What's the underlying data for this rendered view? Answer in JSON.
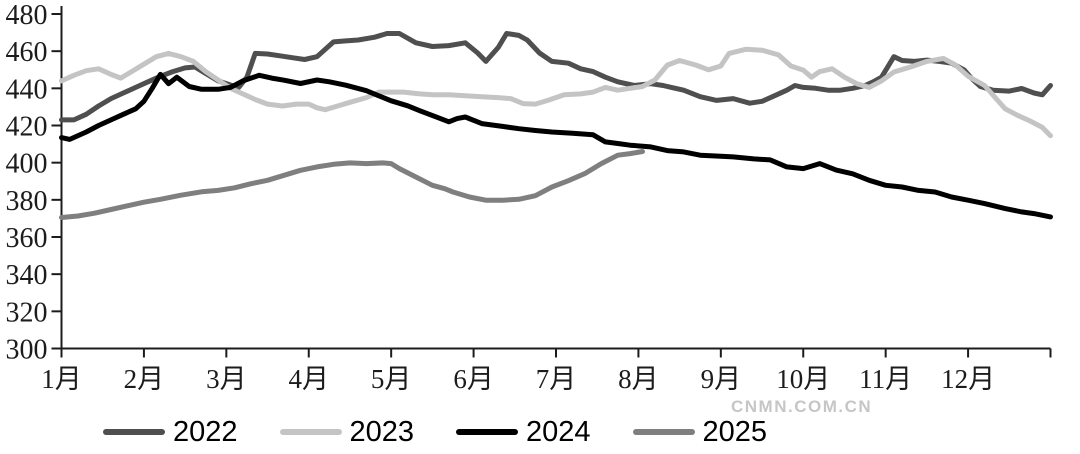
{
  "watermark": "CNMN.COM.CN",
  "chart_data": {
    "type": "line",
    "title": "",
    "xlabel": "",
    "ylabel": "",
    "x_axis": {
      "categories": [
        "1月",
        "2月",
        "3月",
        "4月",
        "5月",
        "6月",
        "7月",
        "8月",
        "9月",
        "10月",
        "11月",
        "12月"
      ],
      "range": [
        1,
        13
      ]
    },
    "y_axis": {
      "min": 300,
      "max": 480,
      "step": 20,
      "tick_labels": [
        "300",
        "320",
        "340",
        "360",
        "380",
        "400",
        "420",
        "440",
        "460",
        "480"
      ]
    },
    "grid": false,
    "legend_position": "bottom",
    "series": [
      {
        "name": "2022",
        "color": "#4f4f4f",
        "x": [
          1.0,
          1.15,
          1.3,
          1.45,
          1.6,
          1.75,
          1.9,
          2.05,
          2.2,
          2.35,
          2.5,
          2.62,
          2.75,
          2.9,
          3.05,
          3.15,
          3.25,
          3.35,
          3.5,
          3.65,
          3.8,
          3.95,
          4.1,
          4.3,
          4.45,
          4.6,
          4.8,
          4.95,
          5.1,
          5.3,
          5.5,
          5.7,
          5.9,
          6.05,
          6.15,
          6.3,
          6.4,
          6.55,
          6.65,
          6.8,
          6.95,
          7.15,
          7.3,
          7.45,
          7.6,
          7.75,
          7.95,
          8.15,
          8.3,
          8.4,
          8.55,
          8.75,
          8.95,
          9.15,
          9.35,
          9.5,
          9.65,
          9.8,
          9.9,
          10.0,
          10.15,
          10.3,
          10.45,
          10.6,
          10.75,
          10.85,
          10.95,
          11.1,
          11.2,
          11.35,
          11.5,
          11.65,
          11.8,
          11.95,
          12.05,
          12.15,
          12.3,
          12.5,
          12.65,
          12.8,
          12.9,
          13.0
        ],
        "values": [
          423,
          423,
          426,
          430.5,
          434.5,
          437.5,
          440.5,
          443.5,
          446.5,
          449,
          451,
          451.5,
          448,
          444,
          441.8,
          440.5,
          446,
          458.8,
          458.5,
          457.5,
          456.5,
          455.5,
          457,
          465,
          465.5,
          466,
          467.5,
          469.5,
          469.5,
          464.5,
          462.5,
          463,
          464.5,
          459,
          454.5,
          462,
          469.5,
          468.5,
          466,
          459,
          454.5,
          453.5,
          450.5,
          449,
          446,
          443.5,
          441.5,
          442.5,
          441.5,
          440.5,
          439,
          435.5,
          433.5,
          434.5,
          432,
          433,
          436,
          439,
          441.5,
          440.5,
          440,
          439,
          439,
          440,
          441.5,
          443.5,
          446,
          457,
          455,
          454.5,
          455.2,
          454.5,
          453.5,
          450,
          445,
          441,
          439,
          438.5,
          439.9,
          437.5,
          436.5,
          441.5
        ]
      },
      {
        "name": "2023",
        "color": "#c4c4c4",
        "x": [
          1.0,
          1.15,
          1.3,
          1.45,
          1.6,
          1.72,
          1.85,
          2.0,
          2.15,
          2.3,
          2.45,
          2.6,
          2.75,
          2.9,
          3.05,
          3.2,
          3.35,
          3.5,
          3.68,
          3.85,
          4.0,
          4.1,
          4.2,
          4.35,
          4.5,
          4.7,
          4.85,
          5.0,
          5.15,
          5.35,
          5.5,
          5.7,
          5.9,
          6.1,
          6.3,
          6.45,
          6.6,
          6.75,
          6.9,
          7.1,
          7.3,
          7.45,
          7.6,
          7.75,
          7.9,
          8.05,
          8.2,
          8.35,
          8.5,
          8.7,
          8.85,
          9.0,
          9.1,
          9.3,
          9.5,
          9.7,
          9.85,
          10.0,
          10.1,
          10.2,
          10.35,
          10.5,
          10.65,
          10.8,
          10.95,
          11.1,
          11.3,
          11.5,
          11.7,
          11.85,
          12.0,
          12.2,
          12.35,
          12.45,
          12.6,
          12.75,
          12.9,
          13.0
        ],
        "values": [
          444,
          447,
          449.5,
          450.5,
          447.5,
          445.5,
          449,
          453,
          457,
          458.8,
          457,
          454.5,
          449,
          444.5,
          440,
          437,
          434,
          431.5,
          430.5,
          431.5,
          431.5,
          429.5,
          428.5,
          430.5,
          432.5,
          435,
          438,
          438,
          438,
          437,
          436.5,
          436.5,
          436,
          435.5,
          435,
          434.5,
          431.8,
          431.5,
          433.5,
          436.5,
          437,
          438,
          440.5,
          439,
          440,
          441,
          444.5,
          452.5,
          455,
          452.5,
          450,
          452,
          458.8,
          461,
          460.5,
          458,
          452,
          449.8,
          446,
          449,
          450.5,
          446,
          442.5,
          440.5,
          444,
          448.8,
          451.5,
          454.5,
          456.1,
          452.5,
          446.5,
          441.5,
          434,
          429,
          425.5,
          422.5,
          419,
          414.5
        ]
      },
      {
        "name": "2024",
        "color": "#000000",
        "x": [
          1.0,
          1.1,
          1.3,
          1.45,
          1.6,
          1.75,
          1.9,
          2.0,
          2.1,
          2.2,
          2.3,
          2.4,
          2.55,
          2.7,
          2.9,
          3.05,
          3.2,
          3.4,
          3.55,
          3.7,
          3.9,
          4.1,
          4.25,
          4.45,
          4.7,
          4.85,
          5.0,
          5.2,
          5.35,
          5.55,
          5.7,
          5.8,
          5.9,
          6.1,
          6.35,
          6.55,
          6.75,
          6.95,
          7.2,
          7.45,
          7.6,
          7.75,
          7.9,
          8.15,
          8.35,
          8.55,
          8.75,
          9.0,
          9.15,
          9.4,
          9.6,
          9.8,
          10.0,
          10.2,
          10.4,
          10.6,
          10.8,
          11.0,
          11.2,
          11.4,
          11.6,
          11.8,
          12.0,
          12.2,
          12.45,
          12.65,
          12.8,
          13.0
        ],
        "values": [
          413.5,
          412.5,
          416.5,
          420,
          423,
          426,
          429,
          433,
          440,
          447.5,
          442.5,
          446,
          441,
          439.5,
          439.5,
          440.5,
          444,
          447,
          445.5,
          444.4,
          442.6,
          444.5,
          443.5,
          441.7,
          438.7,
          436,
          433.3,
          430.6,
          427.9,
          424.5,
          422,
          423.7,
          424.6,
          421,
          419.5,
          418.3,
          417.3,
          416.5,
          415.8,
          415,
          411.2,
          410.3,
          409.4,
          408.5,
          406.5,
          405.8,
          404,
          403.4,
          403.1,
          402,
          401.5,
          397.7,
          396.8,
          399.5,
          396,
          394,
          390.5,
          387.8,
          386.9,
          385.1,
          384.2,
          381.5,
          379.8,
          378,
          375.3,
          373.5,
          372.6,
          370.8
        ]
      },
      {
        "name": "2025",
        "color": "#7f7f7f",
        "x": [
          1.0,
          1.2,
          1.4,
          1.6,
          1.8,
          2.0,
          2.2,
          2.45,
          2.7,
          2.9,
          3.1,
          3.3,
          3.5,
          3.7,
          3.9,
          4.1,
          4.3,
          4.5,
          4.7,
          4.9,
          5.0,
          5.1,
          5.3,
          5.5,
          5.65,
          5.75,
          5.95,
          6.15,
          6.35,
          6.55,
          6.75,
          6.95,
          7.15,
          7.35,
          7.55,
          7.75,
          7.9,
          8.05
        ],
        "values": [
          370.5,
          371.3,
          372.8,
          374.8,
          376.8,
          378.7,
          380.3,
          382.5,
          384.3,
          385.1,
          386.5,
          388.7,
          390.5,
          393.2,
          395.9,
          397.7,
          399.1,
          399.9,
          399.5,
          399.9,
          399.5,
          396.8,
          392.3,
          387.8,
          386,
          384.2,
          381.5,
          379.8,
          379.8,
          380.3,
          382.2,
          386.9,
          390.3,
          394.1,
          399.5,
          404,
          404.9,
          406
        ]
      }
    ]
  }
}
